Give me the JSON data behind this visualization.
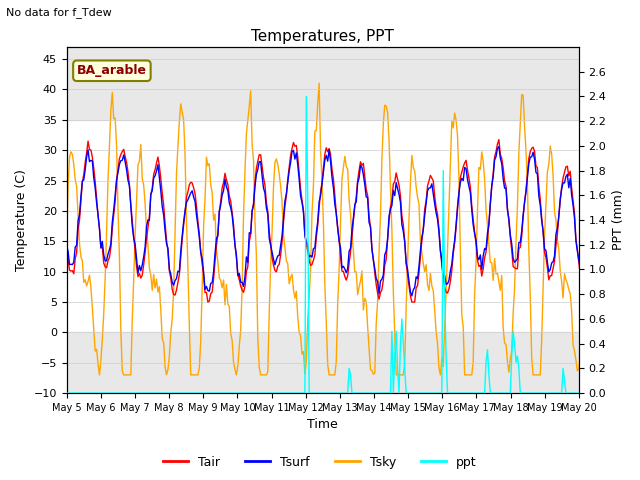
{
  "title": "Temperatures, PPT",
  "suptitle": "No data for f_Tdew",
  "xlabel": "Time",
  "ylabel_left": "Temperature (C)",
  "ylabel_right": "PPT (mm)",
  "annotation": "BA_arable",
  "legend_labels": [
    "Tair",
    "Tsurf",
    "Tsky",
    "ppt"
  ],
  "legend_colors": [
    "red",
    "blue",
    "orange",
    "cyan"
  ],
  "ylim_left": [
    -10,
    47
  ],
  "ylim_right": [
    0.0,
    2.8
  ],
  "yticks_left": [
    -10,
    -5,
    0,
    5,
    10,
    15,
    20,
    25,
    30,
    35,
    40,
    45
  ],
  "yticks_right": [
    0.0,
    0.2,
    0.4,
    0.6,
    0.8,
    1.0,
    1.2,
    1.4,
    1.6,
    1.8,
    2.0,
    2.2,
    2.4,
    2.6
  ],
  "xticklabels": [
    "May 5",
    "May 6",
    "May 7",
    "May 8",
    "May 9",
    "May 10",
    "May 11",
    "May 12",
    "May 13",
    "May 14",
    "May 15",
    "May 16",
    "May 17",
    "May 18",
    "May 19",
    "May 20"
  ],
  "bg_band_color": "#e8e8e8",
  "linewidth": 1.0,
  "figsize": [
    6.4,
    4.8
  ],
  "dpi": 100
}
